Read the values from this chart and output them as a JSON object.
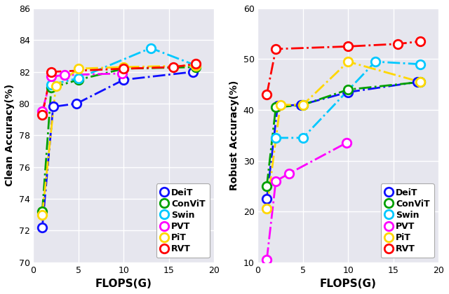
{
  "left": {
    "xlabel": "FLOPS(G)",
    "ylabel": "Clean Accuracy(%)",
    "xlim": [
      0,
      20
    ],
    "ylim": [
      70,
      86
    ],
    "yticks": [
      70,
      72,
      74,
      76,
      78,
      80,
      82,
      84,
      86
    ],
    "xticks": [
      0,
      5,
      10,
      15,
      20
    ],
    "series": {
      "DeiT": {
        "color": "#1010FF",
        "x": [
          1.0,
          2.2,
          4.8,
          10.0,
          17.7
        ],
        "y": [
          72.2,
          79.8,
          80.0,
          81.5,
          82.0
        ]
      },
      "ConViT": {
        "color": "#00A000",
        "x": [
          1.0,
          2.0,
          5.0,
          10.0,
          18.0
        ],
        "y": [
          73.2,
          81.0,
          81.5,
          82.2,
          82.3
        ]
      },
      "Swin": {
        "color": "#00C8FF",
        "x": [
          2.0,
          5.0,
          13.0,
          18.0
        ],
        "y": [
          81.2,
          81.6,
          83.5,
          82.4
        ]
      },
      "PVT": {
        "color": "#FF00FF",
        "x": [
          1.0,
          2.0,
          3.5,
          9.8
        ],
        "y": [
          79.5,
          81.7,
          81.8,
          81.9
        ]
      },
      "PiT": {
        "color": "#FFD700",
        "x": [
          1.0,
          2.5,
          5.0,
          10.0,
          18.0
        ],
        "y": [
          73.0,
          81.1,
          82.2,
          82.3,
          82.4
        ]
      },
      "RVT": {
        "color": "#FF0000",
        "x": [
          1.0,
          2.0,
          10.0,
          15.5,
          18.0
        ],
        "y": [
          79.3,
          82.0,
          82.2,
          82.3,
          82.5
        ]
      }
    }
  },
  "right": {
    "xlabel": "FLOPS(G)",
    "ylabel": "Robust Accuracy(%)",
    "xlim": [
      0,
      20
    ],
    "ylim": [
      10,
      60
    ],
    "yticks": [
      10,
      20,
      30,
      40,
      50,
      60
    ],
    "xticks": [
      0,
      5,
      10,
      15,
      20
    ],
    "series": {
      "DeiT": {
        "color": "#1010FF",
        "x": [
          1.0,
          2.2,
          4.8,
          10.0,
          17.7
        ],
        "y": [
          22.5,
          40.8,
          41.0,
          43.5,
          45.5
        ]
      },
      "ConViT": {
        "color": "#00A000",
        "x": [
          1.0,
          2.0,
          5.0,
          10.0,
          18.0
        ],
        "y": [
          25.0,
          40.5,
          41.0,
          44.0,
          45.5
        ]
      },
      "Swin": {
        "color": "#00C8FF",
        "x": [
          2.0,
          5.0,
          13.0,
          18.0
        ],
        "y": [
          34.5,
          34.5,
          49.5,
          49.0
        ]
      },
      "PVT": {
        "color": "#FF00FF",
        "x": [
          1.0,
          2.0,
          3.5,
          9.8
        ],
        "y": [
          10.5,
          26.0,
          27.5,
          33.5
        ]
      },
      "PiT": {
        "color": "#FFD700",
        "x": [
          1.0,
          2.5,
          5.0,
          10.0,
          18.0
        ],
        "y": [
          20.5,
          41.0,
          41.0,
          49.5,
          45.5
        ]
      },
      "RVT": {
        "color": "#FF0000",
        "x": [
          1.0,
          2.0,
          10.0,
          15.5,
          18.0
        ],
        "y": [
          43.0,
          52.0,
          52.5,
          53.0,
          53.5
        ]
      }
    }
  },
  "legend_order": [
    "DeiT",
    "ConViT",
    "Swin",
    "PVT",
    "PiT",
    "RVT"
  ],
  "bg_color": "#E6E6EE",
  "marker_size": 9,
  "line_width": 2.0,
  "marker_edge_width": 2.0
}
